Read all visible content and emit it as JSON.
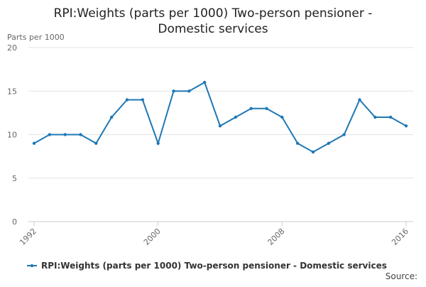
{
  "chart_data": {
    "type": "line",
    "title": "RPI:Weights (parts per 1000) Two-person pensioner - Domestic services",
    "y_label": "Parts per 1000",
    "x": [
      1992,
      1993,
      1994,
      1995,
      1996,
      1997,
      1998,
      1999,
      2000,
      2001,
      2002,
      2003,
      2004,
      2005,
      2006,
      2007,
      2008,
      2009,
      2010,
      2011,
      2012,
      2013,
      2014,
      2015,
      2016
    ],
    "series": [
      {
        "name": "RPI:Weights (parts per 1000) Two-person pensioner - Domestic services",
        "color": "#1f78b4",
        "values": [
          9,
          10,
          10,
          10,
          9,
          12,
          14,
          14,
          9,
          15,
          15,
          16,
          11,
          12,
          13,
          13,
          12,
          9,
          8,
          9,
          10,
          14,
          12,
          12,
          11
        ]
      }
    ],
    "xlim": [
      1992,
      2016
    ],
    "xticks": [
      1992,
      2000,
      2008,
      2016
    ],
    "ylim": [
      0,
      20
    ],
    "yticks": [
      0,
      5,
      10,
      15,
      20
    ],
    "grid": true,
    "source": "Source:"
  }
}
